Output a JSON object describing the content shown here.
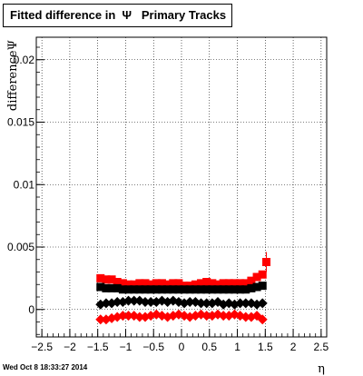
{
  "title": "Fitted difference in  Ψ   Primary Tracks",
  "timestamp": "Wed Oct  8 18:33:27 2014",
  "chart_data": {
    "type": "scatter",
    "title": "Fitted difference in  Ψ   Primary Tracks",
    "xlabel": "η",
    "ylabel": "differenceΨ",
    "xlim": [
      -2.6,
      2.6
    ],
    "ylim": [
      -0.0022,
      0.0218
    ],
    "grid": true,
    "x_ticks": [
      -2.5,
      -2,
      -1.5,
      -1,
      -0.5,
      0,
      0.5,
      1,
      1.5,
      2,
      2.5
    ],
    "x_tick_labels": [
      "−2.5",
      "−2",
      "−1.5",
      "−1",
      "−0.5",
      "0",
      "0.5",
      "1",
      "1.5",
      "2",
      "2.5"
    ],
    "y_ticks": [
      0,
      0.005,
      0.01,
      0.015,
      0.02
    ],
    "y_tick_labels": [
      "0",
      "0.005",
      "0.01",
      "0.015",
      "0.02"
    ],
    "series": [
      {
        "color": "#ff0000",
        "marker": "square",
        "x": [
          -1.45,
          -1.35,
          -1.25,
          -1.15,
          -1.05,
          -0.95,
          -0.85,
          -0.75,
          -0.65,
          -0.55,
          -0.45,
          -0.35,
          -0.25,
          -0.15,
          -0.05,
          0.05,
          0.15,
          0.25,
          0.35,
          0.45,
          0.55,
          0.65,
          0.75,
          0.85,
          0.95,
          1.05,
          1.15,
          1.25,
          1.35,
          1.45,
          1.52
        ],
        "y": [
          0.0025,
          0.0024,
          0.0024,
          0.0022,
          0.0021,
          0.002,
          0.002,
          0.0021,
          0.0021,
          0.002,
          0.0021,
          0.0021,
          0.002,
          0.0021,
          0.0021,
          0.0019,
          0.0019,
          0.002,
          0.0021,
          0.0022,
          0.0021,
          0.002,
          0.0021,
          0.0021,
          0.0021,
          0.0021,
          0.0021,
          0.0023,
          0.0026,
          0.0028,
          0.0038
        ],
        "err": [
          0.0002,
          0.0002,
          0.0002,
          0.0002,
          0.0002,
          0.0002,
          0.0002,
          0.0002,
          0.0002,
          0.0002,
          0.0002,
          0.0002,
          0.0002,
          0.0002,
          0.0002,
          0.0002,
          0.0002,
          0.0002,
          0.0002,
          0.0002,
          0.0002,
          0.0002,
          0.0002,
          0.0002,
          0.0002,
          0.0002,
          0.0002,
          0.0002,
          0.0003,
          0.0003,
          0.0008
        ]
      },
      {
        "color": "#000000",
        "marker": "square",
        "x": [
          -1.45,
          -1.35,
          -1.25,
          -1.15,
          -1.05,
          -0.95,
          -0.85,
          -0.75,
          -0.65,
          -0.55,
          -0.45,
          -0.35,
          -0.25,
          -0.15,
          -0.05,
          0.05,
          0.15,
          0.25,
          0.35,
          0.45,
          0.55,
          0.65,
          0.75,
          0.85,
          0.95,
          1.05,
          1.15,
          1.25,
          1.35,
          1.45
        ],
        "y": [
          0.0018,
          0.0017,
          0.0017,
          0.0017,
          0.0016,
          0.0016,
          0.0016,
          0.0016,
          0.0016,
          0.0016,
          0.0016,
          0.0016,
          0.0016,
          0.0016,
          0.0016,
          0.0016,
          0.0016,
          0.0016,
          0.0016,
          0.0016,
          0.0016,
          0.0016,
          0.0016,
          0.0016,
          0.0016,
          0.0016,
          0.0016,
          0.0017,
          0.0018,
          0.0019
        ],
        "err": [
          0.0002,
          0.0002,
          0.0002,
          0.0002,
          0.0002,
          0.0002,
          0.0002,
          0.0002,
          0.0002,
          0.0002,
          0.0002,
          0.0002,
          0.0002,
          0.0002,
          0.0002,
          0.0002,
          0.0002,
          0.0002,
          0.0002,
          0.0002,
          0.0002,
          0.0002,
          0.0002,
          0.0002,
          0.0002,
          0.0002,
          0.0002,
          0.0002,
          0.0002,
          0.0003
        ]
      },
      {
        "color": "#000000",
        "marker": "diamond",
        "x": [
          -1.45,
          -1.35,
          -1.25,
          -1.15,
          -1.05,
          -0.95,
          -0.85,
          -0.75,
          -0.65,
          -0.55,
          -0.45,
          -0.35,
          -0.25,
          -0.15,
          -0.05,
          0.05,
          0.15,
          0.25,
          0.35,
          0.45,
          0.55,
          0.65,
          0.75,
          0.85,
          0.95,
          1.05,
          1.15,
          1.25,
          1.35,
          1.45
        ],
        "y": [
          0.0004,
          0.0005,
          0.0005,
          0.0006,
          0.0006,
          0.0007,
          0.0007,
          0.0007,
          0.0006,
          0.0006,
          0.0006,
          0.0007,
          0.0006,
          0.0007,
          0.0006,
          0.0005,
          0.0006,
          0.0006,
          0.0005,
          0.0005,
          0.0005,
          0.0006,
          0.0004,
          0.0005,
          0.0004,
          0.0005,
          0.0005,
          0.0005,
          0.0004,
          0.0005
        ],
        "err": [
          0.0002,
          0.0002,
          0.0002,
          0.0002,
          0.0002,
          0.0002,
          0.0002,
          0.0002,
          0.0002,
          0.0002,
          0.0002,
          0.0002,
          0.0002,
          0.0002,
          0.0002,
          0.0002,
          0.0002,
          0.0002,
          0.0002,
          0.0002,
          0.0002,
          0.0002,
          0.0002,
          0.0002,
          0.0002,
          0.0002,
          0.0002,
          0.0002,
          0.0002,
          0.0002
        ]
      },
      {
        "color": "#ff0000",
        "marker": "diamond",
        "x": [
          -1.45,
          -1.35,
          -1.25,
          -1.15,
          -1.05,
          -0.95,
          -0.85,
          -0.75,
          -0.65,
          -0.55,
          -0.45,
          -0.35,
          -0.25,
          -0.15,
          -0.05,
          0.05,
          0.15,
          0.25,
          0.35,
          0.45,
          0.55,
          0.65,
          0.75,
          0.85,
          0.95,
          1.05,
          1.15,
          1.25,
          1.35,
          1.45
        ],
        "y": [
          -0.0008,
          -0.0008,
          -0.0007,
          -0.0006,
          -0.0005,
          -0.0005,
          -0.0005,
          -0.0006,
          -0.0006,
          -0.0005,
          -0.0004,
          -0.0005,
          -0.0006,
          -0.0005,
          -0.0004,
          -0.0005,
          -0.0006,
          -0.0005,
          -0.0004,
          -0.0005,
          -0.0005,
          -0.0004,
          -0.0005,
          -0.0005,
          -0.0004,
          -0.0005,
          -0.0006,
          -0.0006,
          -0.0005,
          -0.0008
        ],
        "err": [
          0.0002,
          0.0002,
          0.0002,
          0.0002,
          0.0002,
          0.0002,
          0.0002,
          0.0002,
          0.0002,
          0.0002,
          0.0002,
          0.0002,
          0.0002,
          0.0002,
          0.0002,
          0.0002,
          0.0002,
          0.0002,
          0.0002,
          0.0002,
          0.0002,
          0.0002,
          0.0002,
          0.0002,
          0.0002,
          0.0002,
          0.0002,
          0.0002,
          0.0002,
          0.0002
        ]
      }
    ]
  }
}
